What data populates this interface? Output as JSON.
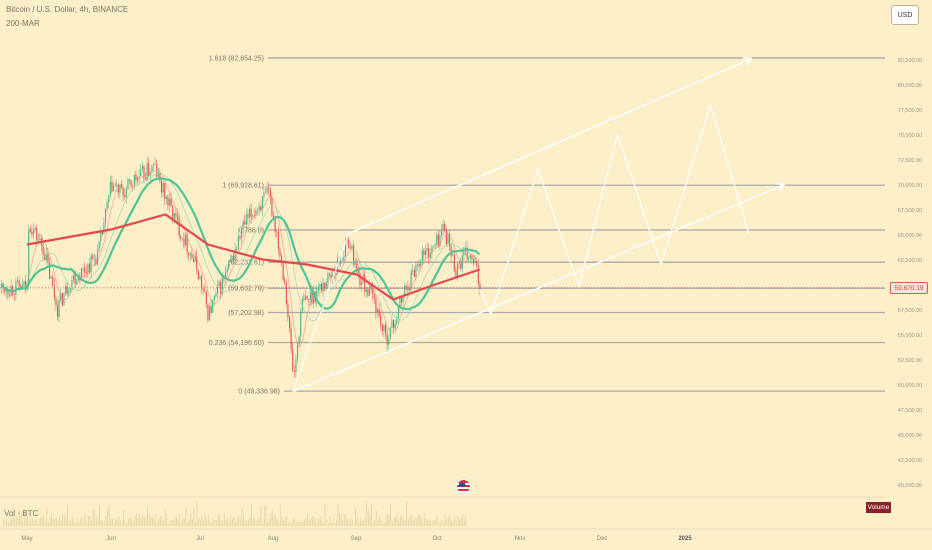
{
  "header": {
    "title": "Bitcoin / U.S. Dollar, 4h, BINANCE",
    "indicator": "200-MAR"
  },
  "currency_button": "USD",
  "volume_label": "Vol · BTC",
  "volume_tag": "Volume",
  "current_price": "59,670.19",
  "colors": {
    "background": "#fdf0c9",
    "up_candle": "#4caf8a",
    "down_candle": "#e0504a",
    "ma_green": "#4fc596",
    "ma_red": "#e8474c",
    "projection": "#ffffff",
    "fib_line": "#a9a9a9"
  },
  "chart_data": {
    "type": "candlestick",
    "symbol": "BTCUSD",
    "interval": "4h",
    "exchange": "BINANCE",
    "price_axis_labels": [
      "82,500.00",
      "80,000.00",
      "77,500.00",
      "75,000.00",
      "72,500.00",
      "70,000.00",
      "67,500.00",
      "65,000.00",
      "62,500.00",
      "57,500.00",
      "55,000.00",
      "52,500.00",
      "50,000.00",
      "47,500.00",
      "45,000.00",
      "42,500.00",
      "40,000.00"
    ],
    "time_axis_labels": [
      "May",
      "Jun",
      "Jul",
      "Aug",
      "Sep",
      "Oct",
      "Nov",
      "Dec",
      "2025"
    ],
    "y_range": [
      40000,
      84500
    ],
    "price_path": [
      {
        "t": "May 1",
        "p": 66500
      },
      {
        "t": "May 7",
        "p": 63500
      },
      {
        "t": "May 12",
        "p": 57600
      },
      {
        "t": "May 17",
        "p": 60500
      },
      {
        "t": "May 22",
        "p": 61500
      },
      {
        "t": "May 27",
        "p": 63000
      },
      {
        "t": "Jun 1",
        "p": 70000
      },
      {
        "t": "Jun 5",
        "p": 69000
      },
      {
        "t": "Jun 9",
        "p": 70500
      },
      {
        "t": "Jun 12",
        "p": 71000
      },
      {
        "t": "Jun 16",
        "p": 71800
      },
      {
        "t": "Jun 18",
        "p": 70000
      },
      {
        "t": "Jun 24",
        "p": 66000
      },
      {
        "t": "Jun 28",
        "p": 63500
      },
      {
        "t": "Jul 1",
        "p": 61500
      },
      {
        "t": "Jul 5",
        "p": 57000
      },
      {
        "t": "Jul 8",
        "p": 59000
      },
      {
        "t": "Jul 13",
        "p": 62000
      },
      {
        "t": "Jul 18",
        "p": 66000
      },
      {
        "t": "Jul 22",
        "p": 67500
      },
      {
        "t": "Jul 27",
        "p": 69000
      },
      {
        "t": "Jul 30",
        "p": 65000
      },
      {
        "t": "Aug 2",
        "p": 60000
      },
      {
        "t": "Aug 5",
        "p": 50500
      },
      {
        "t": "Aug 8",
        "p": 58000
      },
      {
        "t": "Aug 14",
        "p": 59500
      },
      {
        "t": "Aug 20",
        "p": 61500
      },
      {
        "t": "Aug 25",
        "p": 64500
      },
      {
        "t": "Aug 28",
        "p": 61000
      },
      {
        "t": "Sep 3",
        "p": 58500
      },
      {
        "t": "Sep 7",
        "p": 54600
      },
      {
        "t": "Sep 10",
        "p": 56000
      },
      {
        "t": "Sep 14",
        "p": 59500
      },
      {
        "t": "Sep 20",
        "p": 63000
      },
      {
        "t": "Sep 24",
        "p": 63500
      },
      {
        "t": "Sep 28",
        "p": 65800
      },
      {
        "t": "Oct 2",
        "p": 61500
      },
      {
        "t": "Oct 6",
        "p": 63000
      },
      {
        "t": "Oct 9",
        "p": 62000
      },
      {
        "t": "Oct 11",
        "p": 59670
      }
    ],
    "ma_series": [
      {
        "name": "200-MAR",
        "values": [
          {
            "t": "May 1",
            "p": 64000
          },
          {
            "t": "Jun 1",
            "p": 65500
          },
          {
            "t": "Jun 20",
            "p": 67000
          },
          {
            "t": "Jul 5",
            "p": 64000
          },
          {
            "t": "Jul 25",
            "p": 62500
          },
          {
            "t": "Aug 10",
            "p": 62000
          },
          {
            "t": "Aug 28",
            "p": 61000
          },
          {
            "t": "Sep 10",
            "p": 58500
          },
          {
            "t": "Sep 25",
            "p": 60000
          },
          {
            "t": "Oct 11",
            "p": 61500
          }
        ]
      }
    ],
    "fib_levels": [
      {
        "label": "1.618 (82,654.25)",
        "ratio": 1.618,
        "price": 82654.25
      },
      {
        "label": "1 (69,928.61)",
        "ratio": 1,
        "price": 69928.61
      },
      {
        "label": "0.786 (6",
        "ratio": 0.786,
        "price": 65450
      },
      {
        "label": "(62,232.61)",
        "ratio": 0.618,
        "price": 62232.61
      },
      {
        "label": "(59,632.79)",
        "ratio": 0.5,
        "price": 59632.79
      },
      {
        "label": "(57,202.98)",
        "ratio": 0.382,
        "price": 57202.98
      },
      {
        "label": "0.236 (54,196.60)",
        "ratio": 0.236,
        "price": 54196.6
      },
      {
        "label": "0 (49,336.98)",
        "ratio": 0,
        "price": 49336.98
      }
    ],
    "channel": {
      "upper_start": {
        "t": "Aug 25",
        "p": 65100
      },
      "upper_end": {
        "t": "Jan 18",
        "p": 82600
      },
      "lower_start": {
        "t": "Aug 5",
        "p": 49300
      },
      "lower_end": {
        "t": "Jan 30",
        "p": 70000
      }
    },
    "projection_zigzag": [
      {
        "t": "Oct 11",
        "p": 59500
      },
      {
        "t": "Oct 15",
        "p": 57000
      },
      {
        "t": "Nov 1",
        "p": 71500
      },
      {
        "t": "Nov 16",
        "p": 59800
      },
      {
        "t": "Nov 30",
        "p": 75000
      },
      {
        "t": "Dec 16",
        "p": 62000
      },
      {
        "t": "Jan 3",
        "p": 78000
      },
      {
        "t": "Jan 17",
        "p": 65000
      }
    ]
  }
}
